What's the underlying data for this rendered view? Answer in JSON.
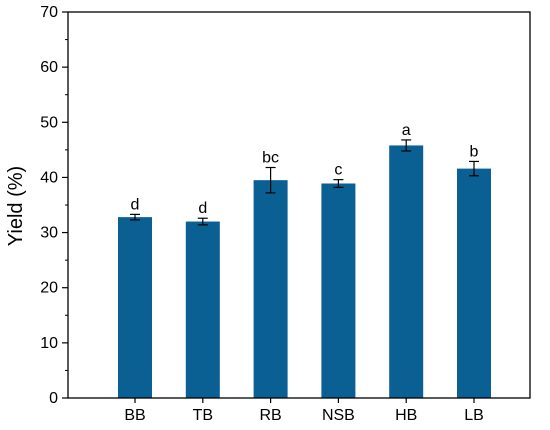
{
  "chart_data": {
    "type": "bar",
    "title": "",
    "xlabel": "",
    "ylabel": "Yield (%)",
    "ylim": [
      0,
      70
    ],
    "yticks": [
      0,
      10,
      20,
      30,
      40,
      50,
      60,
      70
    ],
    "categories": [
      "BB",
      "TB",
      "RB",
      "NSB",
      "HB",
      "LB"
    ],
    "values": [
      32.8,
      32.0,
      39.5,
      38.9,
      45.8,
      41.6
    ],
    "errors": [
      0.5,
      0.6,
      2.3,
      0.7,
      1.0,
      1.3
    ],
    "significance": [
      "d",
      "d",
      "bc",
      "c",
      "a",
      "b"
    ],
    "grid": false,
    "colors": {
      "bar": "#0a5f93",
      "axis": "#000000",
      "error": "#000000"
    }
  }
}
